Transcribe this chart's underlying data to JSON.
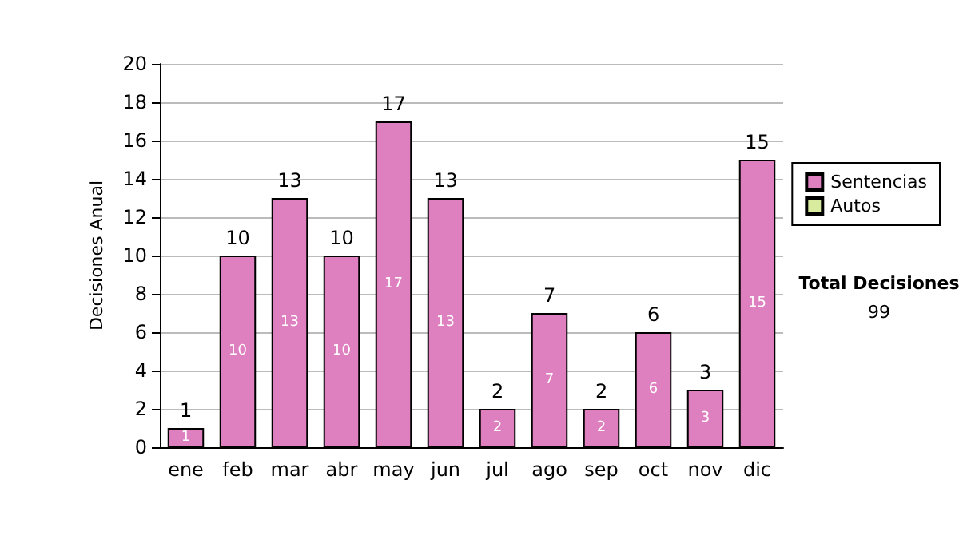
{
  "chart_data": {
    "type": "bar",
    "ylabel": "Decisiones Anual",
    "categories": [
      "ene",
      "feb",
      "mar",
      "abr",
      "may",
      "jun",
      "jul",
      "ago",
      "sep",
      "oct",
      "nov",
      "dic"
    ],
    "series": [
      {
        "name": "Sentencias",
        "color": "#de7fbf",
        "values": [
          1,
          10,
          13,
          10,
          17,
          13,
          2,
          7,
          2,
          6,
          3,
          15
        ],
        "value_labels": [
          "1",
          "10",
          "13",
          "10",
          "17",
          "13",
          "2",
          "7",
          "2",
          "6",
          "3",
          "15"
        ]
      },
      {
        "name": "Autos",
        "color": "#d9eb9f",
        "values": [
          0,
          0,
          0,
          0,
          0,
          0,
          0,
          0,
          0,
          0,
          0,
          0
        ]
      }
    ],
    "stacked": true,
    "totals": [
      "1",
      "10",
      "13",
      "10",
      "17",
      "13",
      "2",
      "7",
      "2",
      "6",
      "3",
      "15"
    ],
    "ylim": [
      0,
      20
    ],
    "yticks": [
      0,
      2,
      4,
      6,
      8,
      10,
      12,
      14,
      16,
      18,
      20
    ],
    "grid": "y",
    "legend": "right",
    "annotations": [
      "Total Decisiones",
      "99"
    ]
  }
}
